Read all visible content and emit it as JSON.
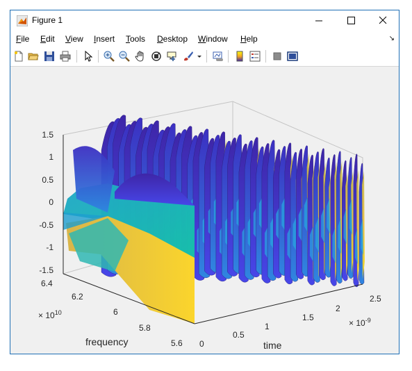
{
  "window": {
    "title": "Figure 1"
  },
  "menubar": {
    "items": [
      {
        "ul": "F",
        "rest": "ile"
      },
      {
        "ul": "E",
        "rest": "dit"
      },
      {
        "ul": "V",
        "rest": "iew"
      },
      {
        "ul": "I",
        "rest": "nsert"
      },
      {
        "ul": "T",
        "rest": "ools"
      },
      {
        "ul": "D",
        "rest": "esktop"
      },
      {
        "ul": "W",
        "rest": "indow"
      },
      {
        "ul": "H",
        "rest": "elp"
      }
    ]
  },
  "toolbar": {
    "icons": [
      "new-figure-icon",
      "open-file-icon",
      "save-icon",
      "print-icon",
      "pointer-icon",
      "zoom-in-icon",
      "zoom-out-icon",
      "pan-icon",
      "rotate-3d-icon",
      "data-cursor-icon",
      "brush-icon",
      "brush-dropdown-icon",
      "link-plot-icon",
      "colorbar-icon",
      "legend-icon",
      "hide-plot-tools-icon",
      "show-plot-tools-icon"
    ]
  },
  "plot": {
    "zaxis": {
      "ticks": [
        "1.5",
        "1",
        "0.5",
        "0",
        "-0.5",
        "-1",
        "-1.5"
      ]
    },
    "yaxis": {
      "label": "frequency",
      "ticks": [
        "6.4",
        "6.2",
        "6",
        "5.8",
        "5.6"
      ],
      "exponent_base": "× 10",
      "exponent_power": "10"
    },
    "xaxis": {
      "label": "time",
      "ticks": [
        "0",
        "0.5",
        "1",
        "1.5",
        "2",
        "2.5"
      ],
      "exponent_base": "× 10",
      "exponent_power": "-9"
    },
    "colors": {
      "low": "#3e26a8",
      "mid": "#1ebba0",
      "high": "#f9fb0e",
      "box": "#c8c8c8"
    }
  }
}
